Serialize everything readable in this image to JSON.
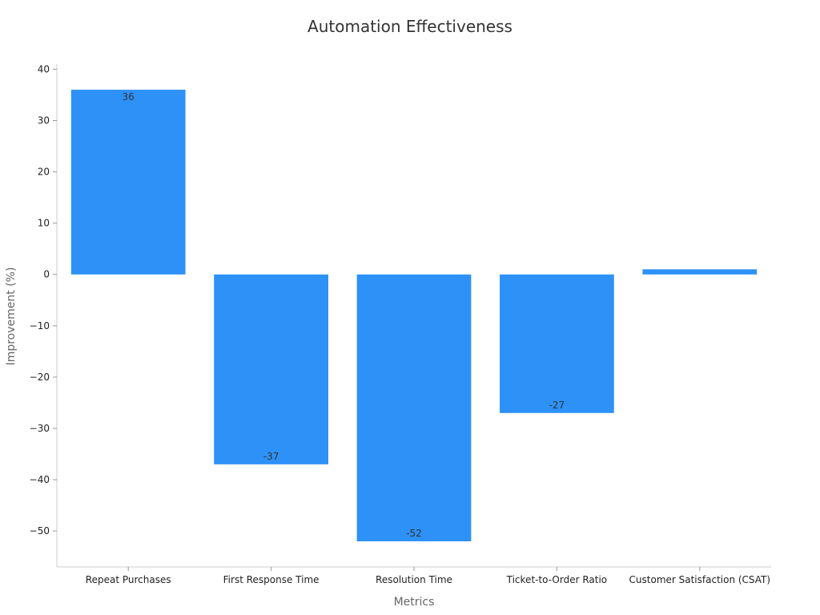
{
  "chart_data": {
    "type": "bar",
    "title": "Automation Effectiveness",
    "xlabel": "Metrics",
    "ylabel": "Improvement (%)",
    "categories": [
      "Repeat Purchases",
      "First Response Time",
      "Resolution Time",
      "Ticket-to-Order Ratio",
      "Customer Satisfaction (CSAT)"
    ],
    "values": [
      36,
      -37,
      -52,
      -27,
      1
    ],
    "data_labels": [
      "36",
      "-37",
      "-52",
      "-27",
      ""
    ],
    "ylim": [
      -57,
      41
    ],
    "yticks": [
      40,
      30,
      20,
      10,
      0,
      -10,
      -20,
      -30,
      -40,
      -50
    ],
    "ytick_labels": [
      "40",
      "30",
      "20",
      "10",
      "0",
      "−10",
      "−20",
      "−30",
      "−40",
      "−50"
    ],
    "bar_color": "#2d91f7",
    "grid": false,
    "legend": "none"
  }
}
